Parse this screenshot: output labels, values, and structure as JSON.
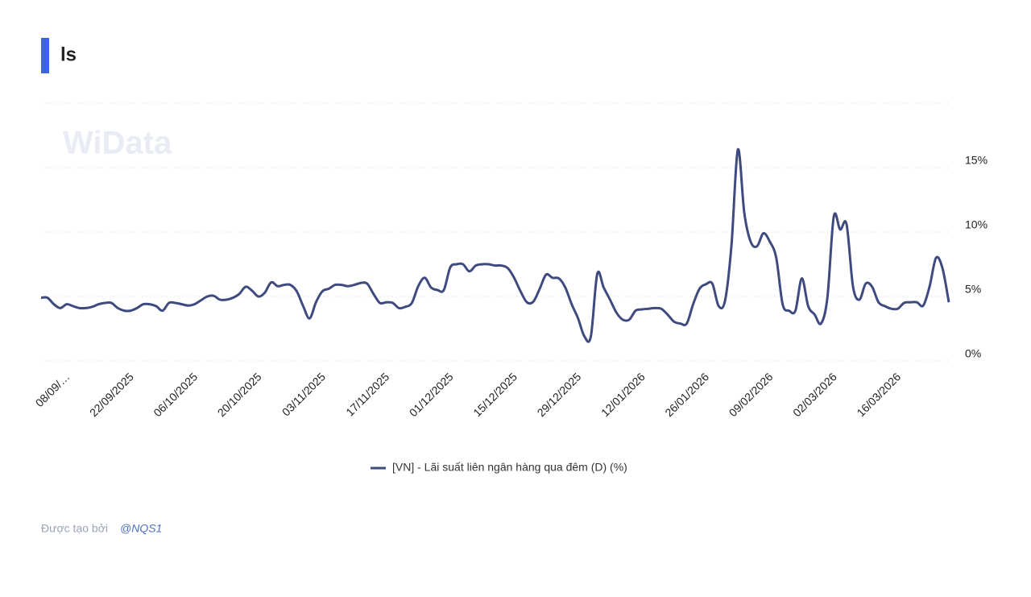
{
  "title": "ls",
  "watermark": "WiData",
  "footer": {
    "text": "Được tạo bởi",
    "user": "@NQS1"
  },
  "chart_data": {
    "type": "line",
    "categories": [
      null,
      null,
      null,
      null,
      "08/09/…",
      null,
      null,
      null,
      null,
      null,
      null,
      null,
      null,
      null,
      "22/09/2025",
      null,
      null,
      null,
      null,
      null,
      null,
      null,
      null,
      null,
      "06/10/2025",
      null,
      null,
      null,
      null,
      null,
      null,
      null,
      null,
      null,
      "20/10/2025",
      null,
      null,
      null,
      null,
      null,
      null,
      null,
      null,
      null,
      "03/11/2025",
      null,
      null,
      null,
      null,
      null,
      null,
      null,
      null,
      null,
      "17/11/2025",
      null,
      null,
      null,
      null,
      null,
      null,
      null,
      null,
      null,
      "01/12/2025",
      null,
      null,
      null,
      null,
      null,
      null,
      null,
      null,
      null,
      "15/12/2025",
      null,
      null,
      null,
      null,
      null,
      null,
      null,
      null,
      null,
      "29/12/2025",
      null,
      null,
      null,
      null,
      null,
      null,
      null,
      null,
      null,
      "12/01/2026",
      null,
      null,
      null,
      null,
      null,
      null,
      null,
      null,
      null,
      "26/01/2026",
      null,
      null,
      null,
      null,
      null,
      null,
      null,
      null,
      null,
      "09/02/2026",
      null,
      null,
      null,
      null,
      null,
      null,
      null,
      null,
      null,
      "02/03/2026",
      null,
      null,
      null,
      null,
      null,
      null,
      null,
      null,
      null,
      "16/03/2026",
      null,
      null,
      null,
      null,
      null,
      null,
      null,
      null
    ],
    "series": [
      {
        "name": "[VN] - Lãi suất liên ngân hàng qua đêm (D) (%)",
        "color": "#3f4a7e",
        "values": [
          4.9,
          4.9,
          4.4,
          4.1,
          4.4,
          4.25,
          4.1,
          4.1,
          4.2,
          4.4,
          4.5,
          4.5,
          4.1,
          3.9,
          3.9,
          4.1,
          4.4,
          4.4,
          4.25,
          3.9,
          4.5,
          4.5,
          4.4,
          4.3,
          4.4,
          4.7,
          5.0,
          5.05,
          4.75,
          4.75,
          4.9,
          5.2,
          5.75,
          5.45,
          5.0,
          5.3,
          6.1,
          5.8,
          5.9,
          5.9,
          5.4,
          4.25,
          3.3,
          4.55,
          5.4,
          5.6,
          5.9,
          5.9,
          5.8,
          5.9,
          6.05,
          6.0,
          5.2,
          4.5,
          4.55,
          4.5,
          4.1,
          4.2,
          4.5,
          5.8,
          6.45,
          5.7,
          5.5,
          5.5,
          7.25,
          7.5,
          7.5,
          6.95,
          7.4,
          7.5,
          7.5,
          7.4,
          7.4,
          7.2,
          6.45,
          5.4,
          4.55,
          4.6,
          5.6,
          6.7,
          6.45,
          6.4,
          5.7,
          4.4,
          3.3,
          1.9,
          1.9,
          6.75,
          5.7,
          4.75,
          3.75,
          3.2,
          3.2,
          3.9,
          4.0,
          4.05,
          4.1,
          4.05,
          3.6,
          3.05,
          2.9,
          2.9,
          4.4,
          5.6,
          5.95,
          6.0,
          4.25,
          4.7,
          9.0,
          16.4,
          11.5,
          9.25,
          8.9,
          9.9,
          9.25,
          8.0,
          4.4,
          3.9,
          3.9,
          6.4,
          4.25,
          3.6,
          2.9,
          4.9,
          11.2,
          10.2,
          10.6,
          5.8,
          4.75,
          6.0,
          5.75,
          4.55,
          4.25,
          4.05,
          4.05,
          4.5,
          4.55,
          4.55,
          4.3,
          5.8,
          8.0,
          7.2,
          4.55
        ]
      }
    ],
    "ylim": [
      0,
      20
    ],
    "yticks": [
      {
        "value": 0,
        "label": "0%"
      },
      {
        "value": 5,
        "label": "5%"
      },
      {
        "value": 10,
        "label": "10%"
      },
      {
        "value": 15,
        "label": "15%"
      }
    ],
    "grid": true,
    "legend": "bottom"
  }
}
